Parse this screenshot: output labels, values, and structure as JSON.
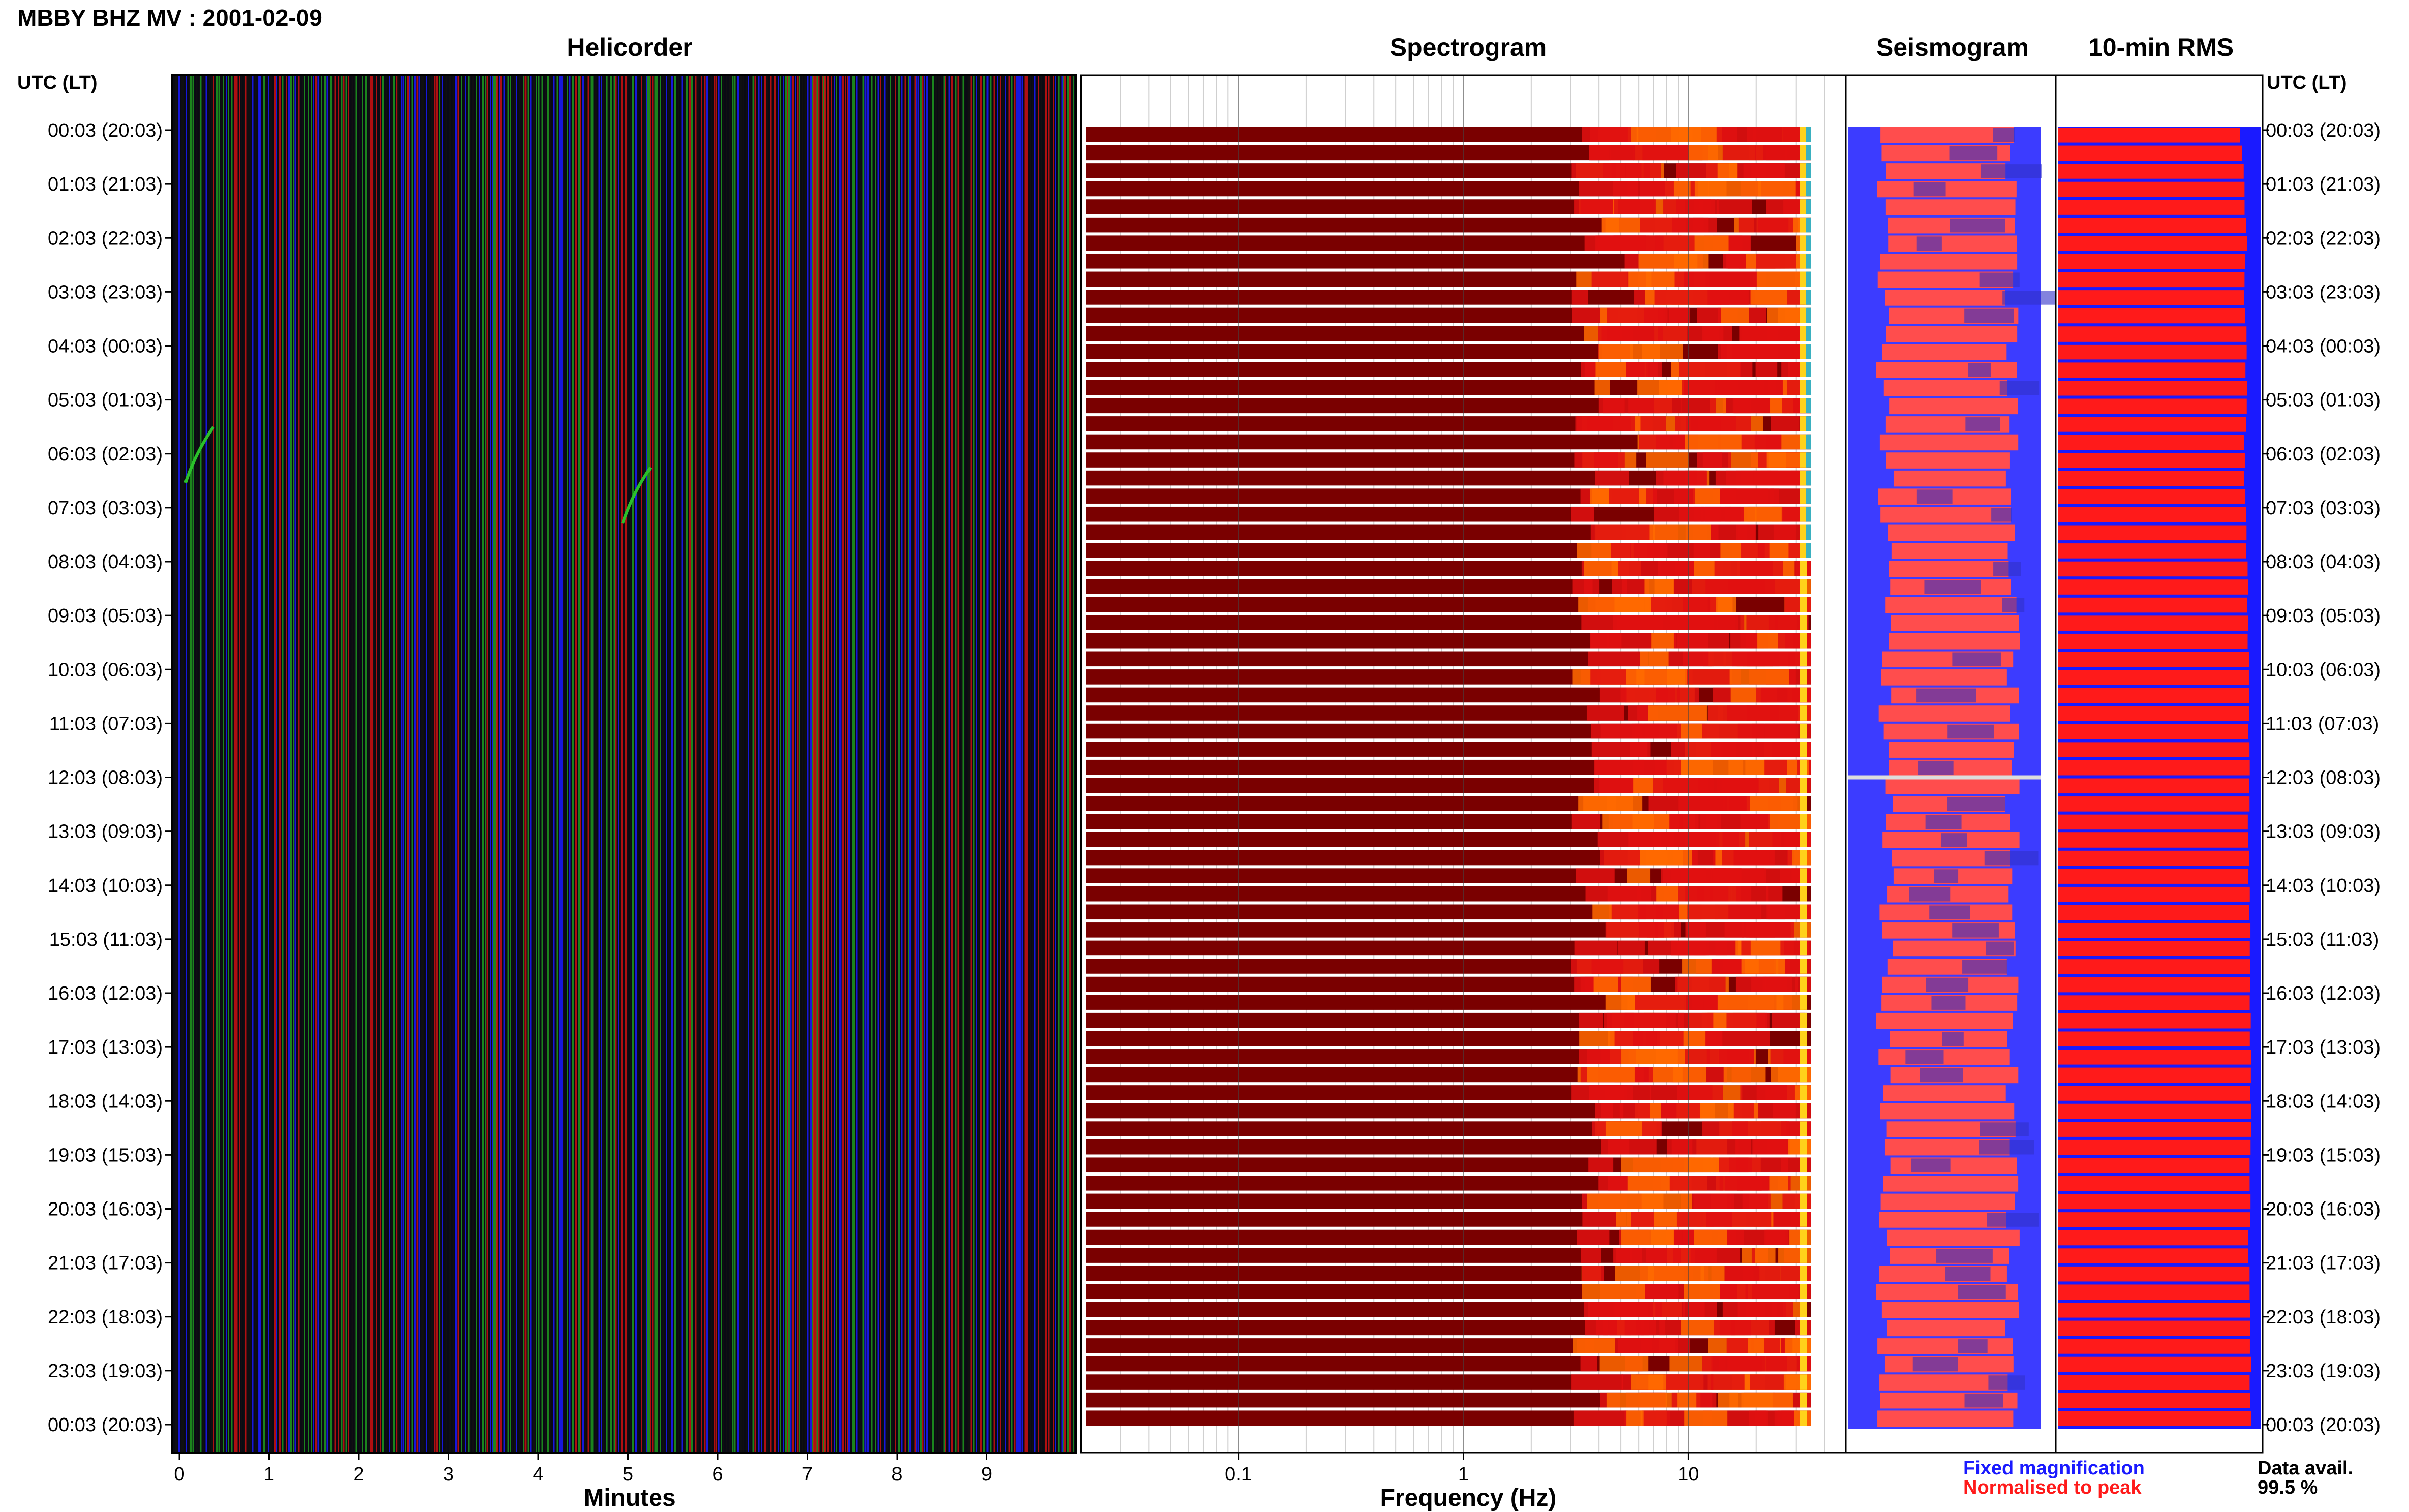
{
  "header": {
    "station": "MBBY BHZ MV : 2001-02-09",
    "utc_header": "UTC (LT)"
  },
  "panels": {
    "helicorder": "Helicorder",
    "spectrogram": "Spectrogram",
    "seismogram": "Seismogram",
    "rms": "10-min RMS"
  },
  "axes": {
    "minutes_title": "Minutes",
    "frequency_title": "Frequency (Hz)"
  },
  "legend": {
    "fixed": "Fixed magnification",
    "normalised": "Normalised to peak"
  },
  "availability": {
    "label": "Data avail.",
    "value": "99.5 %"
  },
  "colors": {
    "blue": "#1a1aff",
    "red": "#ff1a1a",
    "dark_red": "#7a0000",
    "green": "#1f9a1f"
  },
  "chart_data": [
    {
      "type": "heatmap",
      "name_printed": "Helicorder",
      "xlabel": "Minutes",
      "xlim": [
        0,
        10
      ],
      "x_ticks": [
        "0",
        "1",
        "2",
        "3",
        "4",
        "5",
        "6",
        "7",
        "8",
        "9"
      ],
      "y_ticks": [
        "00:03 (20:03)",
        "01:03 (21:03)",
        "02:03 (22:03)",
        "03:03 (23:03)",
        "04:03 (00:03)",
        "05:03 (01:03)",
        "06:03 (02:03)",
        "07:03 (03:03)",
        "08:03 (04:03)",
        "09:03 (05:03)",
        "10:03 (06:03)",
        "11:03 (07:03)",
        "12:03 (08:03)",
        "13:03 (09:03)",
        "14:03 (10:03)",
        "15:03 (11:03)",
        "16:03 (12:03)",
        "17:03 (13:03)",
        "18:03 (14:03)",
        "19:03 (15:03)",
        "20:03 (16:03)",
        "21:03 (17:03)",
        "22:03 (18:03)",
        "23:03 (19:03)",
        "00:03 (20:03)"
      ],
      "trace_colors": [
        "#1a1aff",
        "#1f9a1f",
        "#cc1111",
        "#111111"
      ]
    },
    {
      "type": "heatmap",
      "name_printed": "Spectrogram",
      "xlabel": "Frequency (Hz)",
      "xscale": "log",
      "xlim": [
        0.02,
        50
      ],
      "x_ticks": [
        "0.1",
        "1",
        "10"
      ],
      "rows": 72
    },
    {
      "type": "bar",
      "name_printed": "Seismogram",
      "series": [
        {
          "name": "Fixed magnification"
        },
        {
          "name": "Normalised to peak"
        }
      ]
    },
    {
      "type": "bar",
      "name_printed": "10-min RMS",
      "y_ticks_right": [
        "00:03 (20:03)",
        "01:03 (21:03)",
        "02:03 (22:03)",
        "03:03 (23:03)",
        "04:03 (00:03)",
        "05:03 (01:03)",
        "06:03 (02:03)",
        "07:03 (03:03)",
        "08:03 (04:03)",
        "09:03 (05:03)",
        "10:03 (06:03)",
        "11:03 (07:03)",
        "12:03 (08:03)",
        "13:03 (09:03)",
        "14:03 (10:03)",
        "15:03 (11:03)",
        "16:03 (12:03)",
        "17:03 (13:03)",
        "18:03 (14:03)",
        "19:03 (15:03)",
        "20:03 (16:03)",
        "21:03 (17:03)",
        "22:03 (18:03)",
        "23:03 (19:03)",
        "00:03 (20:03)"
      ],
      "rms_relative": [
        0.9,
        0.92,
        0.93,
        0.92,
        0.93,
        0.93,
        0.92,
        0.93,
        0.93,
        0.94,
        0.94,
        0.94,
        0.95,
        0.94,
        0.94,
        0.95,
        0.95,
        0.95,
        0.95,
        0.95,
        0.95,
        0.94,
        0.95,
        0.95,
        0.95
      ]
    }
  ]
}
